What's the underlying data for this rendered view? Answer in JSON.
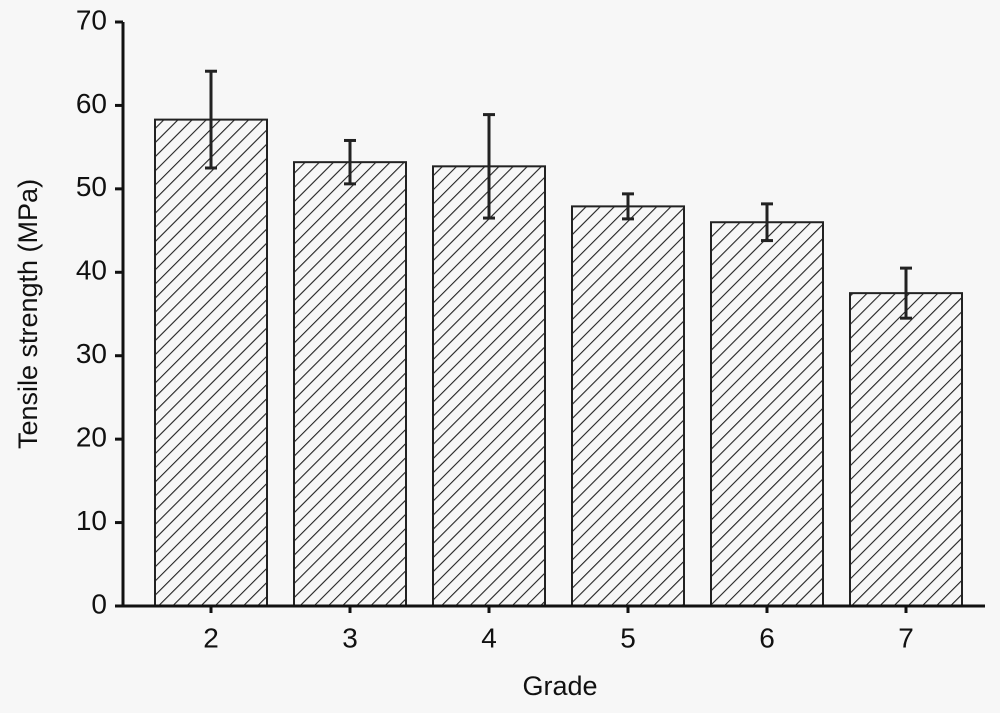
{
  "chart_data": {
    "type": "bar",
    "x_label": "Grade",
    "y_label": "Tensile strength (MPa)",
    "categories": [
      "2",
      "3",
      "4",
      "5",
      "6",
      "7"
    ],
    "values": [
      58.3,
      53.2,
      52.7,
      47.9,
      46.0,
      37.5
    ],
    "errors": [
      5.8,
      2.6,
      6.2,
      1.5,
      2.2,
      3.0
    ],
    "color": "#222222",
    "ylim": [
      0,
      70
    ],
    "yticks": [
      0,
      10,
      20,
      30,
      40,
      50,
      60,
      70
    ]
  }
}
